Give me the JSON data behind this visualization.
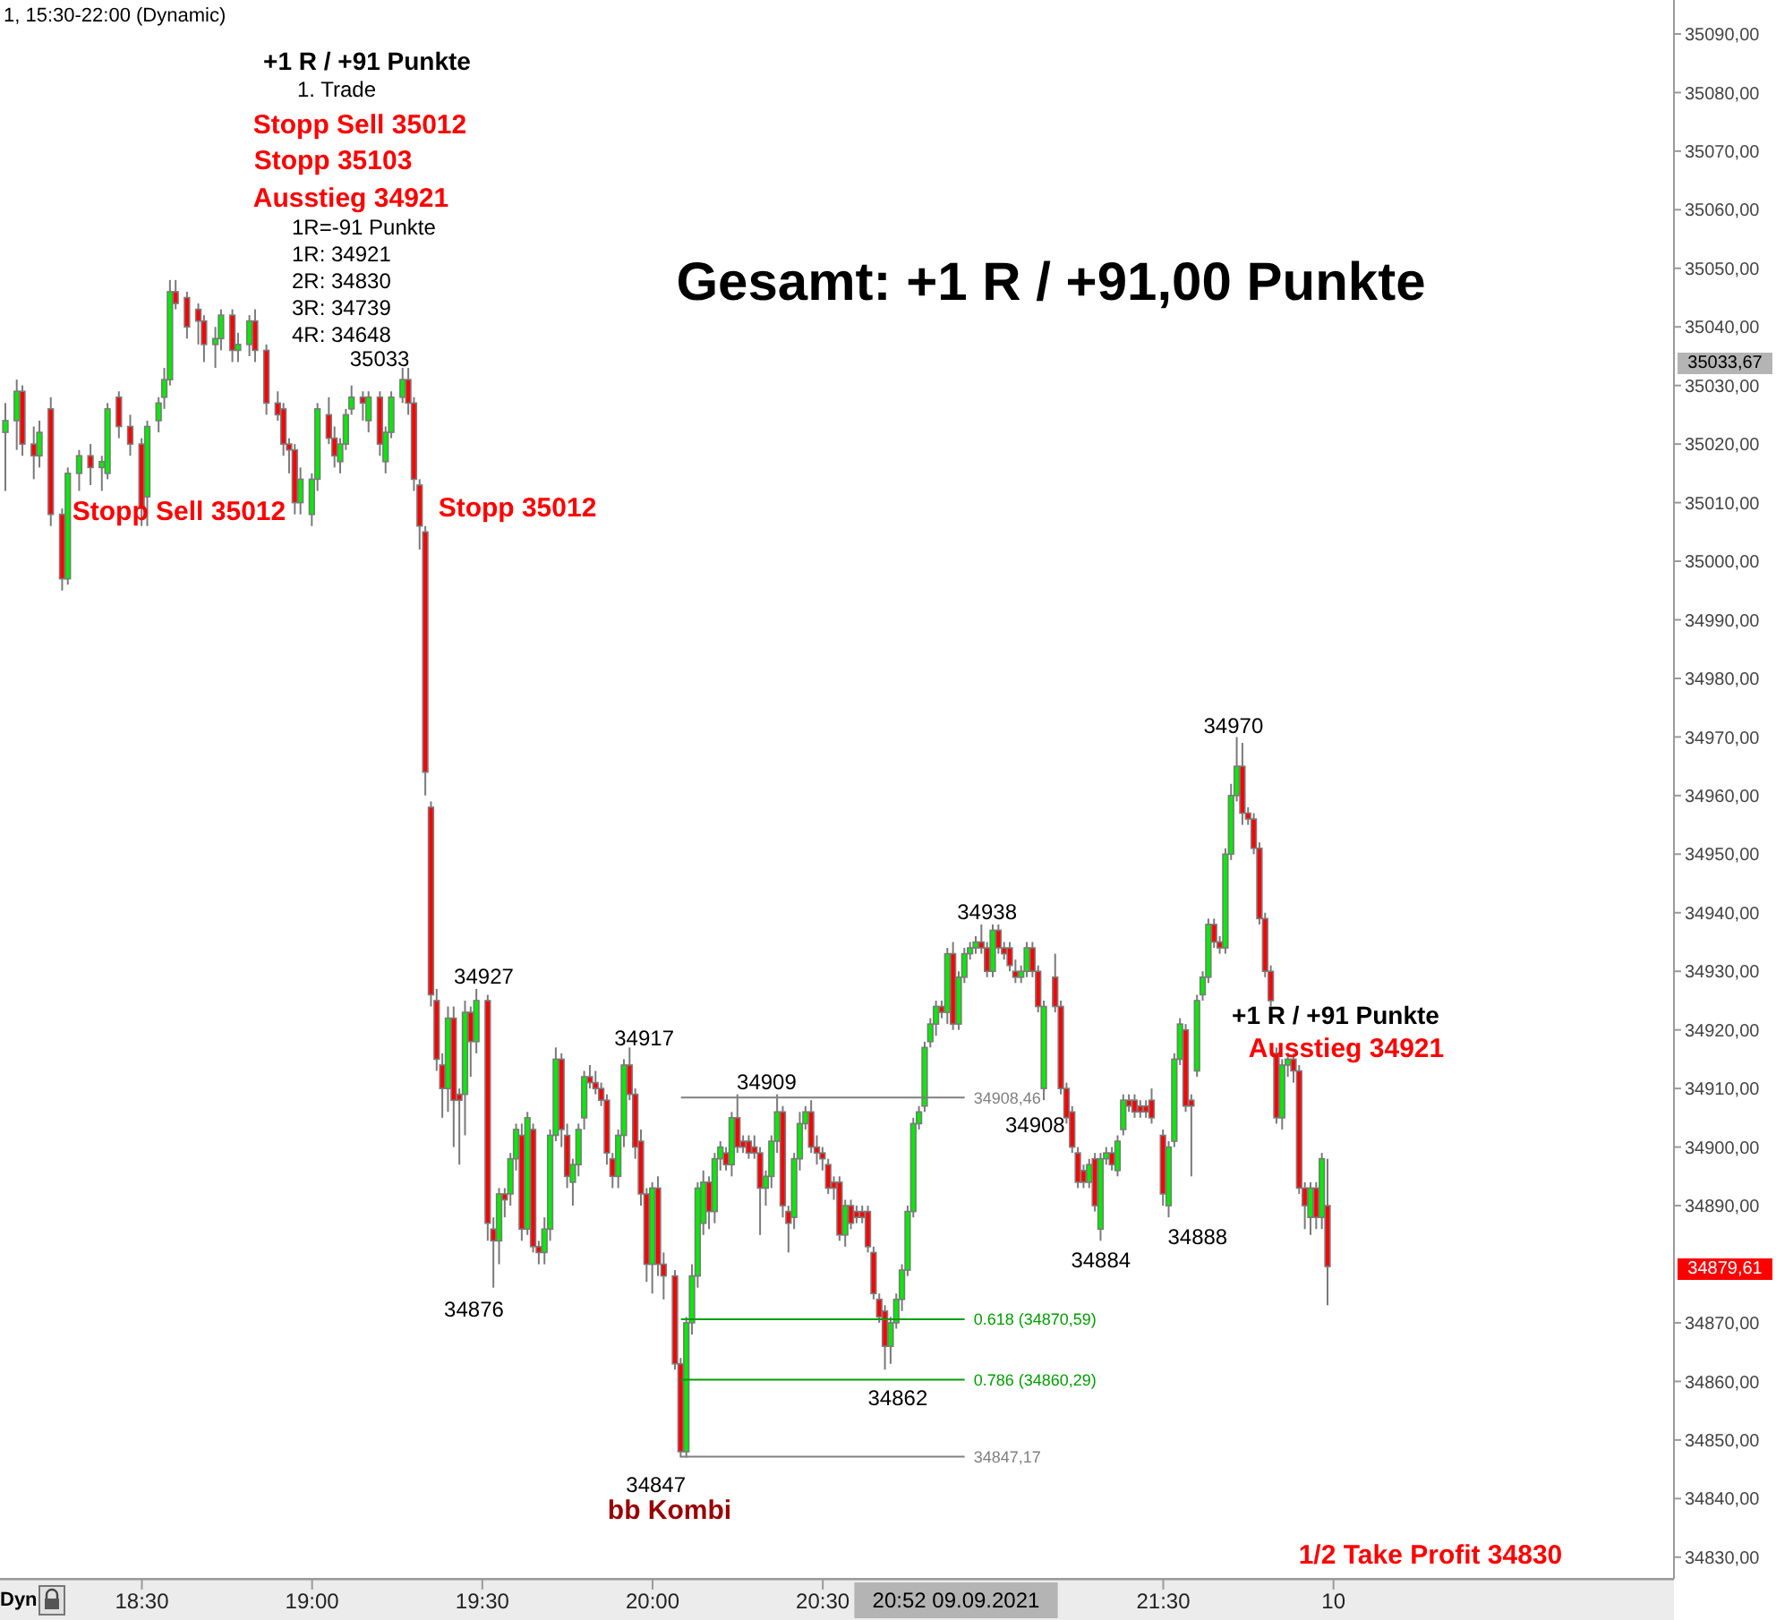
{
  "chart_data": {
    "type": "candlestick",
    "title": "1, 15:30-22:00 (Dynamic)",
    "subtitle": "Gesamt: +1 R / +91,00 Punkte",
    "xlim": [
      "2021-09-09T18:05",
      "2021-09-09T23:00"
    ],
    "xticks": [
      {
        "value": "2021-09-09T18:30",
        "label": "18:30"
      },
      {
        "value": "2021-09-09T19:00",
        "label": "19:00"
      },
      {
        "value": "2021-09-09T19:30",
        "label": "19:30"
      },
      {
        "value": "2021-09-09T20:00",
        "label": "20:00"
      },
      {
        "value": "2021-09-09T20:30",
        "label": "20:30"
      },
      {
        "value": "2021-09-09T21:30",
        "label": "21:30"
      },
      {
        "value": "2021-09-09T22:00",
        "label": "10"
      }
    ],
    "ylim": [
      34826.3,
      35095.8
    ],
    "yticks": [
      {
        "value": 34830,
        "label": "34830,00"
      },
      {
        "value": 34840,
        "label": "34840,00"
      },
      {
        "value": 34850,
        "label": "34850,00"
      },
      {
        "value": 34860,
        "label": "34860,00"
      },
      {
        "value": 34870,
        "label": "34870,00"
      },
      {
        "value": 34890,
        "label": "34890,00"
      },
      {
        "value": 34900,
        "label": "34900,00"
      },
      {
        "value": 34910,
        "label": "34910,00"
      },
      {
        "value": 34920,
        "label": "34920,00"
      },
      {
        "value": 34930,
        "label": "34930,00"
      },
      {
        "value": 34940,
        "label": "34940,00"
      },
      {
        "value": 34950,
        "label": "34950,00"
      },
      {
        "value": 34960,
        "label": "34960,00"
      },
      {
        "value": 34970,
        "label": "34970,00"
      },
      {
        "value": 34980,
        "label": "34980,00"
      },
      {
        "value": 34990,
        "label": "34990,00"
      },
      {
        "value": 35000,
        "label": "35000,00"
      },
      {
        "value": 35010,
        "label": "35010,00"
      },
      {
        "value": 35020,
        "label": "35020,00"
      },
      {
        "value": 35030,
        "label": "35030,00"
      },
      {
        "value": 35040,
        "label": "35040,00"
      },
      {
        "value": 35050,
        "label": "35050,00"
      },
      {
        "value": 35060,
        "label": "35060,00"
      },
      {
        "value": 35070,
        "label": "35070,00"
      },
      {
        "value": 35080,
        "label": "35080,00"
      },
      {
        "value": 35090,
        "label": "35090,00"
      }
    ],
    "x": [
      "2021-09-09T18:06",
      "2021-09-09T18:08",
      "2021-09-09T18:09",
      "2021-09-09T18:11",
      "2021-09-09T18:12",
      "2021-09-09T18:14",
      "2021-09-09T18:16",
      "2021-09-09T18:17",
      "2021-09-09T18:19",
      "2021-09-09T18:21",
      "2021-09-09T18:23",
      "2021-09-09T18:24",
      "2021-09-09T18:26",
      "2021-09-09T18:28",
      "2021-09-09T18:30",
      "2021-09-09T18:31",
      "2021-09-09T18:33",
      "2021-09-09T18:34",
      "2021-09-09T18:35",
      "2021-09-09T18:36",
      "2021-09-09T18:38",
      "2021-09-09T18:40",
      "2021-09-09T18:41",
      "2021-09-09T18:43",
      "2021-09-09T18:44",
      "2021-09-09T18:46",
      "2021-09-09T18:47",
      "2021-09-09T18:49",
      "2021-09-09T18:50",
      "2021-09-09T18:52",
      "2021-09-09T18:54",
      "2021-09-09T18:55",
      "2021-09-09T18:56",
      "2021-09-09T18:57",
      "2021-09-09T18:58",
      "2021-09-09T19:00",
      "2021-09-09T19:01",
      "2021-09-09T19:03",
      "2021-09-09T19:04",
      "2021-09-09T19:05",
      "2021-09-09T19:06",
      "2021-09-09T19:07",
      "2021-09-09T19:09",
      "2021-09-09T19:10",
      "2021-09-09T19:12",
      "2021-09-09T19:13",
      "2021-09-09T19:14",
      "2021-09-09T19:16",
      "2021-09-09T19:17",
      "2021-09-09T19:18",
      "2021-09-09T19:19",
      "2021-09-09T19:20",
      "2021-09-09T19:21",
      "2021-09-09T19:22",
      "2021-09-09T19:23",
      "2021-09-09T19:24",
      "2021-09-09T19:25",
      "2021-09-09T19:26",
      "2021-09-09T19:27",
      "2021-09-09T19:28",
      "2021-09-09T19:29",
      "2021-09-09T19:31",
      "2021-09-09T19:32",
      "2021-09-09T19:33",
      "2021-09-09T19:34",
      "2021-09-09T19:35",
      "2021-09-09T19:36",
      "2021-09-09T19:37",
      "2021-09-09T19:38",
      "2021-09-09T19:39",
      "2021-09-09T19:40",
      "2021-09-09T19:41",
      "2021-09-09T19:42",
      "2021-09-09T19:43",
      "2021-09-09T19:44",
      "2021-09-09T19:45",
      "2021-09-09T19:46",
      "2021-09-09T19:47",
      "2021-09-09T19:48",
      "2021-09-09T19:49",
      "2021-09-09T19:50",
      "2021-09-09T19:51",
      "2021-09-09T19:52",
      "2021-09-09T19:53",
      "2021-09-09T19:54",
      "2021-09-09T19:55",
      "2021-09-09T19:56",
      "2021-09-09T19:57",
      "2021-09-09T19:58",
      "2021-09-09T19:59",
      "2021-09-09T20:00",
      "2021-09-09T20:01",
      "2021-09-09T20:02",
      "2021-09-09T20:04",
      "2021-09-09T20:05",
      "2021-09-09T20:06",
      "2021-09-09T20:07",
      "2021-09-09T20:08",
      "2021-09-09T20:09",
      "2021-09-09T20:10",
      "2021-09-09T20:11",
      "2021-09-09T20:12",
      "2021-09-09T20:13",
      "2021-09-09T20:14",
      "2021-09-09T20:15",
      "2021-09-09T20:16",
      "2021-09-09T20:17",
      "2021-09-09T20:18",
      "2021-09-09T20:19",
      "2021-09-09T20:20",
      "2021-09-09T20:21",
      "2021-09-09T20:22",
      "2021-09-09T20:23",
      "2021-09-09T20:24",
      "2021-09-09T20:25",
      "2021-09-09T20:26",
      "2021-09-09T20:27",
      "2021-09-09T20:28",
      "2021-09-09T20:29",
      "2021-09-09T20:30",
      "2021-09-09T20:31",
      "2021-09-09T20:32",
      "2021-09-09T20:33",
      "2021-09-09T20:34",
      "2021-09-09T20:35",
      "2021-09-09T20:36",
      "2021-09-09T20:37",
      "2021-09-09T20:38",
      "2021-09-09T20:39",
      "2021-09-09T20:40",
      "2021-09-09T20:41",
      "2021-09-09T20:42",
      "2021-09-09T20:43",
      "2021-09-09T20:44",
      "2021-09-09T20:45",
      "2021-09-09T20:46",
      "2021-09-09T20:47",
      "2021-09-09T20:48",
      "2021-09-09T20:49",
      "2021-09-09T20:50",
      "2021-09-09T20:51",
      "2021-09-09T20:52",
      "2021-09-09T20:53",
      "2021-09-09T20:54",
      "2021-09-09T20:55",
      "2021-09-09T20:56",
      "2021-09-09T20:57",
      "2021-09-09T20:58",
      "2021-09-09T20:59",
      "2021-09-09T21:00",
      "2021-09-09T21:01",
      "2021-09-09T21:02",
      "2021-09-09T21:03",
      "2021-09-09T21:04",
      "2021-09-09T21:05",
      "2021-09-09T21:06",
      "2021-09-09T21:07",
      "2021-09-09T21:08",
      "2021-09-09T21:09",
      "2021-09-09T21:11",
      "2021-09-09T21:12",
      "2021-09-09T21:13",
      "2021-09-09T21:14",
      "2021-09-09T21:15",
      "2021-09-09T21:16",
      "2021-09-09T21:17",
      "2021-09-09T21:18",
      "2021-09-09T21:19",
      "2021-09-09T21:20",
      "2021-09-09T21:21",
      "2021-09-09T21:22",
      "2021-09-09T21:23",
      "2021-09-09T21:24",
      "2021-09-09T21:25",
      "2021-09-09T21:26",
      "2021-09-09T21:27",
      "2021-09-09T21:28",
      "2021-09-09T21:30",
      "2021-09-09T21:31",
      "2021-09-09T21:32",
      "2021-09-09T21:33",
      "2021-09-09T21:34",
      "2021-09-09T21:35",
      "2021-09-09T21:36",
      "2021-09-09T21:37",
      "2021-09-09T21:38",
      "2021-09-09T21:39",
      "2021-09-09T21:40",
      "2021-09-09T21:41",
      "2021-09-09T21:42",
      "2021-09-09T21:43",
      "2021-09-09T21:44",
      "2021-09-09T21:45",
      "2021-09-09T21:46",
      "2021-09-09T21:47",
      "2021-09-09T21:48",
      "2021-09-09T21:49",
      "2021-09-09T21:50",
      "2021-09-09T21:51",
      "2021-09-09T21:52",
      "2021-09-09T21:53",
      "2021-09-09T21:54",
      "2021-09-09T21:55",
      "2021-09-09T21:56",
      "2021-09-09T21:57",
      "2021-09-09T21:58",
      "2021-09-09T21:59"
    ],
    "ohlc": [
      [
        35022,
        35027,
        35012,
        35024
      ],
      [
        35024,
        35031,
        35019,
        35029
      ],
      [
        35029,
        35030,
        35018,
        35020
      ],
      [
        35020,
        35023,
        35014,
        35018
      ],
      [
        35018,
        35024,
        35016,
        35022
      ],
      [
        35026,
        35028,
        35006,
        35008
      ],
      [
        35008,
        35009,
        34995,
        34997
      ],
      [
        34997,
        35016,
        34996,
        35015
      ],
      [
        35015,
        35019,
        35012,
        35018
      ],
      [
        35018,
        35020,
        35013,
        35016
      ],
      [
        35016,
        35018,
        35012,
        35017
      ],
      [
        35015,
        35027,
        35014,
        35026
      ],
      [
        35028,
        35029,
        35021,
        35023
      ],
      [
        35023,
        35025,
        35018,
        35020
      ],
      [
        35020,
        35021,
        35006,
        35009
      ],
      [
        35011,
        35024,
        35006,
        35023
      ],
      [
        35024,
        35028,
        35022,
        35027
      ],
      [
        35028,
        35033,
        35026,
        35031
      ],
      [
        35031,
        35048,
        35030,
        35046
      ],
      [
        35046,
        35048,
        35043,
        35044
      ],
      [
        35045,
        35046,
        35038,
        35040
      ],
      [
        35043,
        35044,
        35037,
        35041
      ],
      [
        35041,
        35042,
        35034,
        35037
      ],
      [
        35037,
        35040,
        35033,
        35038
      ],
      [
        35038,
        35043,
        35036,
        35042
      ],
      [
        35042,
        35043,
        35034,
        35036
      ],
      [
        35036,
        35039,
        35034,
        35037
      ],
      [
        35037,
        35042,
        35035,
        35041
      ],
      [
        35041,
        35043,
        35034,
        35036
      ],
      [
        35036,
        35037,
        35025,
        35027
      ],
      [
        35027,
        35029,
        35024,
        35025
      ],
      [
        35026,
        35027,
        35018,
        35020
      ],
      [
        35020,
        35021,
        35015,
        35019
      ],
      [
        35019,
        35020,
        35008,
        35010
      ],
      [
        35010,
        35016,
        35008,
        35014
      ],
      [
        35008,
        35015,
        35006,
        35014
      ],
      [
        35014,
        35027,
        35012,
        35026
      ],
      [
        35025,
        35028,
        35020,
        35021
      ],
      [
        35021,
        35023,
        35016,
        35018
      ],
      [
        35017,
        35021,
        35015,
        35020
      ],
      [
        35020,
        35026,
        35019,
        35025
      ],
      [
        35026,
        35030,
        35025,
        35028
      ],
      [
        35028,
        35029,
        35024,
        35027
      ],
      [
        35024,
        35029,
        35022,
        35028
      ],
      [
        35028,
        35029,
        35018,
        35020
      ],
      [
        35017,
        35023,
        35015,
        35022
      ],
      [
        35022,
        35029,
        35021,
        35028
      ],
      [
        35028,
        35033,
        35027,
        35031
      ],
      [
        35031,
        35033,
        35025,
        35027
      ],
      [
        35027,
        35028,
        35012,
        35014
      ],
      [
        35013,
        35014,
        35002,
        35006
      ],
      [
        35005,
        35006,
        34960,
        34964
      ],
      [
        34958,
        34959,
        34924,
        34926
      ],
      [
        34925,
        34927,
        34913,
        34915
      ],
      [
        34914,
        34916,
        34905,
        34910
      ],
      [
        34910,
        34924,
        34906,
        34922
      ],
      [
        34922,
        34924,
        34900,
        34908
      ],
      [
        34909,
        34910,
        34897,
        34908
      ],
      [
        34909,
        34925,
        34902,
        34923
      ],
      [
        34923,
        34924,
        34912,
        34918
      ],
      [
        34918,
        34927,
        34916,
        34925
      ],
      [
        34925,
        34926,
        34884,
        34887
      ],
      [
        34886,
        34888,
        34876,
        34884
      ],
      [
        34884,
        34893,
        34880,
        34892
      ],
      [
        34892,
        34893,
        34888,
        34891
      ],
      [
        34892,
        34899,
        34890,
        34898
      ],
      [
        34898,
        34904,
        34896,
        34903
      ],
      [
        34902,
        34904,
        34884,
        34886
      ],
      [
        34886,
        34906,
        34885,
        34905
      ],
      [
        34903,
        34904,
        34882,
        34883
      ],
      [
        34883,
        34884,
        34880,
        34882
      ],
      [
        34882,
        34888,
        34880,
        34886
      ],
      [
        34886,
        34903,
        34884,
        34902
      ],
      [
        34902,
        34917,
        34901,
        34915
      ],
      [
        34915,
        34916,
        34900,
        34903
      ],
      [
        34902,
        34904,
        34893,
        34895
      ],
      [
        34894,
        34898,
        34890,
        34897
      ],
      [
        34897,
        34904,
        34895,
        34903
      ],
      [
        34905,
        34913,
        34903,
        34912
      ],
      [
        34912,
        34914,
        34910,
        34911
      ],
      [
        34911,
        34913,
        34909,
        34910
      ],
      [
        34910,
        34911,
        34907,
        34908
      ],
      [
        34908,
        34909,
        34897,
        34899
      ],
      [
        34898,
        34899,
        34893,
        34895
      ],
      [
        34895,
        34903,
        34893,
        34902
      ],
      [
        34902,
        34915,
        34900,
        34914
      ],
      [
        34914,
        34917,
        34908,
        34909
      ],
      [
        34909,
        34910,
        34898,
        34900
      ],
      [
        34901,
        34903,
        34890,
        34892
      ],
      [
        34892,
        34893,
        34877,
        34880
      ],
      [
        34880,
        34894,
        34875,
        34893
      ],
      [
        34893,
        34895,
        34878,
        34880
      ],
      [
        34880,
        34882,
        34874,
        34878
      ],
      [
        34878,
        34879,
        34862,
        34863
      ],
      [
        34863,
        34864,
        34847,
        34848
      ],
      [
        34848,
        34871,
        34847,
        34870
      ],
      [
        34870,
        34880,
        34868,
        34878
      ],
      [
        34878,
        34894,
        34876,
        34893
      ],
      [
        34887,
        34896,
        34885,
        34894
      ],
      [
        34894,
        34895,
        34886,
        34889
      ],
      [
        34889,
        34899,
        34887,
        34898
      ],
      [
        34898,
        34901,
        34896,
        34900
      ],
      [
        34899,
        34900,
        34896,
        34897
      ],
      [
        34897,
        34906,
        34895,
        34905
      ],
      [
        34905,
        34909,
        34899,
        34900
      ],
      [
        34901,
        34902,
        34899,
        34900
      ],
      [
        34901,
        34902,
        34898,
        34899
      ],
      [
        34900,
        34902,
        34898,
        34899
      ],
      [
        34899,
        34900,
        34885,
        34893
      ],
      [
        34893,
        34896,
        34890,
        34895
      ],
      [
        34895,
        34902,
        34893,
        34901
      ],
      [
        34901,
        34909,
        34899,
        34906
      ],
      [
        34906,
        34907,
        34888,
        34890
      ],
      [
        34889,
        34890,
        34882,
        34887
      ],
      [
        34888,
        34899,
        34886,
        34898
      ],
      [
        34898,
        34906,
        34896,
        34904
      ],
      [
        34904,
        34907,
        34903,
        34906
      ],
      [
        34906,
        34908,
        34899,
        34900
      ],
      [
        34900,
        34902,
        34897,
        34899
      ],
      [
        34899,
        34900,
        34896,
        34898
      ],
      [
        34897,
        34898,
        34892,
        34893
      ],
      [
        34894,
        34895,
        34891,
        34893
      ],
      [
        34894,
        34895,
        34884,
        34885
      ],
      [
        34885,
        34891,
        34883,
        34890
      ],
      [
        34890,
        34891,
        34886,
        34887
      ],
      [
        34889,
        34890,
        34887,
        34888
      ],
      [
        34889,
        34890,
        34887,
        34888
      ],
      [
        34889,
        34890,
        34882,
        34883
      ],
      [
        34882,
        34883,
        34874,
        34875
      ],
      [
        34874,
        34875,
        34870,
        34871
      ],
      [
        34872,
        34873,
        34862,
        34866
      ],
      [
        34866,
        34871,
        34863,
        34870
      ],
      [
        34870,
        34875,
        34869,
        34874
      ],
      [
        34874,
        34880,
        34872,
        34879
      ],
      [
        34879,
        34890,
        34878,
        34889
      ],
      [
        34889,
        34905,
        34888,
        34904
      ],
      [
        34904,
        34907,
        34903,
        34906
      ],
      [
        34907,
        34918,
        34906,
        34917
      ],
      [
        34918,
        34922,
        34917,
        34921
      ],
      [
        34921,
        34925,
        34919,
        34924
      ],
      [
        34924,
        34925,
        34922,
        34923
      ],
      [
        34923,
        34934,
        34921,
        34933
      ],
      [
        34933,
        34935,
        34920,
        34921
      ],
      [
        34921,
        34930,
        34920,
        34929
      ],
      [
        34929,
        34934,
        34928,
        34933
      ],
      [
        34933,
        34935,
        34932,
        34934
      ],
      [
        34934,
        34936,
        34933,
        34935
      ],
      [
        34935,
        34938,
        34933,
        34934
      ],
      [
        34934,
        34935,
        34929,
        34930
      ],
      [
        34930,
        34938,
        34929,
        34937
      ],
      [
        34937,
        34938,
        34933,
        34934
      ],
      [
        34934,
        34935,
        34932,
        34933
      ],
      [
        34934,
        34935,
        34930,
        34931
      ],
      [
        34930,
        34932,
        34928,
        34929
      ],
      [
        34929,
        34931,
        34928,
        34930
      ],
      [
        34930,
        34935,
        34929,
        34934
      ],
      [
        34934,
        34935,
        34929,
        34930
      ],
      [
        34930,
        34931,
        34923,
        34924
      ],
      [
        34910,
        34925,
        34908,
        34924
      ],
      [
        34929,
        34933,
        34923,
        34924
      ],
      [
        34924,
        34925,
        34909,
        34910
      ],
      [
        34910,
        34911,
        34904,
        34905
      ],
      [
        34906,
        34907,
        34899,
        34900
      ],
      [
        34899,
        34900,
        34893,
        34894
      ],
      [
        34896,
        34897,
        34893,
        34894
      ],
      [
        34894,
        34898,
        34893,
        34897
      ],
      [
        34898,
        34899,
        34889,
        34890
      ],
      [
        34886,
        34899,
        34884,
        34898
      ],
      [
        34898,
        34900,
        34897,
        34899
      ],
      [
        34899,
        34900,
        34896,
        34897
      ],
      [
        34896,
        34902,
        34895,
        34901
      ],
      [
        34903,
        34909,
        34902,
        34908
      ],
      [
        34908,
        34909,
        34906,
        34907
      ],
      [
        34908,
        34909,
        34905,
        34906
      ],
      [
        34907,
        34908,
        34905,
        34906
      ],
      [
        34907,
        34908,
        34905,
        34906
      ],
      [
        34908,
        34910,
        34904,
        34905
      ],
      [
        34902,
        34903,
        34890,
        34892
      ],
      [
        34890,
        34901,
        34888,
        34900
      ],
      [
        34901,
        34916,
        34900,
        34915
      ],
      [
        34915,
        34922,
        34914,
        34921
      ],
      [
        34920,
        34921,
        34906,
        34907
      ],
      [
        34908,
        34909,
        34895,
        34907
      ],
      [
        34913,
        34926,
        34912,
        34925
      ],
      [
        34926,
        34930,
        34925,
        34929
      ],
      [
        34929,
        34939,
        34928,
        34938
      ],
      [
        34938,
        34939,
        34934,
        34935
      ],
      [
        34935,
        34936,
        34933,
        34934
      ],
      [
        34934,
        34951,
        34933,
        34950
      ],
      [
        34950,
        34962,
        34949,
        34960
      ],
      [
        34960,
        34970,
        34959,
        34965
      ],
      [
        34965,
        34969,
        34955,
        34957
      ],
      [
        34957,
        34958,
        34955,
        34956
      ],
      [
        34956,
        34957,
        34950,
        34951
      ],
      [
        34951,
        34952,
        34938,
        34939
      ],
      [
        34939,
        34940,
        34929,
        34930
      ],
      [
        34930,
        34931,
        34924,
        34925
      ],
      [
        34916,
        34917,
        34904,
        34905
      ],
      [
        34905,
        34915,
        34903,
        34914
      ],
      [
        34914,
        34916,
        34912,
        34915
      ],
      [
        34915,
        34916,
        34911,
        34913
      ],
      [
        34913,
        34914,
        34892,
        34893
      ],
      [
        34893,
        34894,
        34886,
        34890
      ],
      [
        34888,
        34894,
        34885,
        34893
      ],
      [
        34893,
        34894,
        34886,
        34888
      ],
      [
        34888,
        34899,
        34886,
        34898
      ],
      [
        34890,
        34898,
        34873,
        34879.61
      ]
    ],
    "ref_lines": [
      {
        "axis": "y",
        "value": 34908.46,
        "label": "34908,46",
        "color": "#808080"
      },
      {
        "axis": "y",
        "value": 34870.59,
        "label": "0.618 (34870,59)",
        "color": "#00a000"
      },
      {
        "axis": "y",
        "value": 34860.29,
        "label": "0.786 (34860,29)",
        "color": "#00a000"
      },
      {
        "axis": "y",
        "value": 34847.17,
        "label": "34847,17",
        "color": "#808080"
      }
    ],
    "annotations": [
      "+1 R / +91 Punkte",
      "1. Trade",
      "Stopp Sell 35012",
      "Stopp 35103",
      "Ausstieg 34921",
      "1R=-91 Punkte",
      "1R: 34921",
      "2R: 34830",
      "3R: 34739",
      "4R: 34648",
      "+1 R / +91 Punkte",
      "bb Kombi",
      "Dyn",
      "20:52 09.09.2021",
      {
        "text": "35033",
        "x": "2021-09-09T19:16",
        "y": 35033
      },
      "Stopp Sell 35012",
      "Stopp 35012",
      {
        "text": "34927",
        "x": "2021-09-09T19:29",
        "y": 34927
      },
      {
        "text": "34876",
        "x": "2021-09-09T19:32",
        "y": 34876
      },
      {
        "text": "34917",
        "x": "2021-09-09T19:56",
        "y": 34917
      },
      {
        "text": "34847",
        "x": "2021-09-09T20:05",
        "y": 34847
      },
      {
        "text": "34909",
        "x": "2021-09-09T20:22",
        "y": 34909
      },
      {
        "text": "34862",
        "x": "2021-09-09T20:41",
        "y": 34862
      },
      {
        "text": "34938",
        "x": "2021-09-09T20:58",
        "y": 34938
      },
      {
        "text": "34908",
        "x": "2021-09-09T21:09",
        "y": 34908
      },
      {
        "text": "34884",
        "x": "2021-09-09T21:19",
        "y": 34884
      },
      {
        "text": "34888",
        "x": "2021-09-09T21:31",
        "y": 34888
      },
      {
        "text": "34970",
        "x": "2021-09-09T21:43",
        "y": 34970
      },
      "Ausstieg 34921",
      "1/2 Take Profit 34830",
      "34879,61",
      "35033,67"
    ]
  }
}
